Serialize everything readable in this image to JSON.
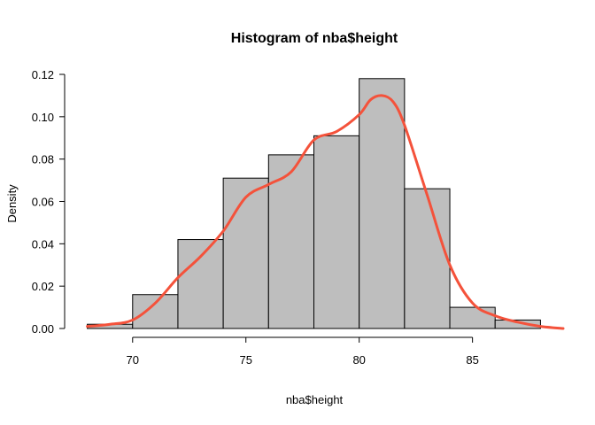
{
  "chart_data": {
    "type": "bar",
    "title": "Histogram of nba$height",
    "xlabel": "nba$height",
    "ylabel": "Density",
    "xlim": [
      67,
      89
    ],
    "ylim": [
      0,
      0.12
    ],
    "x_ticks": [
      70,
      75,
      80,
      85
    ],
    "y_ticks": [
      0.0,
      0.02,
      0.04,
      0.06,
      0.08,
      0.1,
      0.12
    ],
    "x_tick_labels": [
      "70",
      "75",
      "80",
      "85"
    ],
    "y_tick_labels": [
      "0.00",
      "0.02",
      "0.04",
      "0.06",
      "0.08",
      "0.10",
      "0.12"
    ],
    "bins": [
      {
        "start": 68,
        "end": 70,
        "density": 0.002
      },
      {
        "start": 70,
        "end": 72,
        "density": 0.016
      },
      {
        "start": 72,
        "end": 74,
        "density": 0.042
      },
      {
        "start": 74,
        "end": 76,
        "density": 0.071
      },
      {
        "start": 76,
        "end": 78,
        "density": 0.082
      },
      {
        "start": 78,
        "end": 80,
        "density": 0.091
      },
      {
        "start": 80,
        "end": 82,
        "density": 0.118
      },
      {
        "start": 82,
        "end": 84,
        "density": 0.066
      },
      {
        "start": 84,
        "end": 86,
        "density": 0.01
      },
      {
        "start": 86,
        "end": 88,
        "density": 0.004
      }
    ],
    "density_curve": {
      "x": [
        68,
        69,
        70,
        71,
        72,
        73,
        74,
        75,
        76,
        77,
        78,
        79,
        80,
        80.5,
        81,
        81.5,
        82,
        83,
        84,
        85,
        86,
        87,
        88,
        89
      ],
      "y": [
        0.001,
        0.002,
        0.004,
        0.012,
        0.024,
        0.034,
        0.046,
        0.062,
        0.068,
        0.074,
        0.089,
        0.093,
        0.101,
        0.108,
        0.11,
        0.107,
        0.096,
        0.063,
        0.03,
        0.012,
        0.006,
        0.003,
        0.001,
        0.0
      ],
      "color": "#f4523b"
    },
    "bar_fill": "#bebebe",
    "bar_stroke": "#000000",
    "grid": false,
    "legend": "none"
  }
}
